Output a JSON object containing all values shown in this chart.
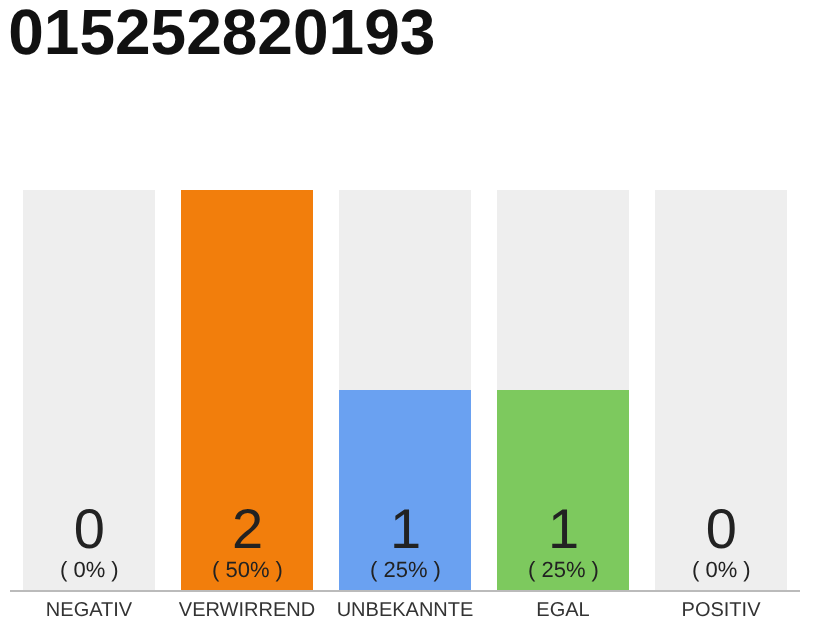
{
  "chart_data": {
    "type": "bar",
    "title": "015252820193",
    "stacked": true,
    "categories": [
      "NEGATIV",
      "VERWIRREND",
      "UNBEKANNTE",
      "EGAL",
      "POSITIV"
    ],
    "series": [
      {
        "colors": [
          "#eeeeee",
          "#f27e0c",
          "#6aa1f1",
          "#7dc95e",
          "#eeeeee"
        ],
        "values": [
          0,
          2,
          1,
          1,
          0
        ],
        "value_labels": [
          null,
          "2\n( 50% )",
          "1\n( 25% )",
          "1\n( 25% )",
          null
        ]
      },
      {
        "color": "#eeeeee",
        "values": [
          2,
          0,
          1,
          1,
          2
        ]
      }
    ],
    "annotations": [
      {
        "text": "0\n( 0% )",
        "x": "NEGATIV",
        "y": 0
      },
      {
        "text": "0\n( 0% )",
        "x": "POSITIV",
        "y": 0
      }
    ],
    "legend": false
  }
}
